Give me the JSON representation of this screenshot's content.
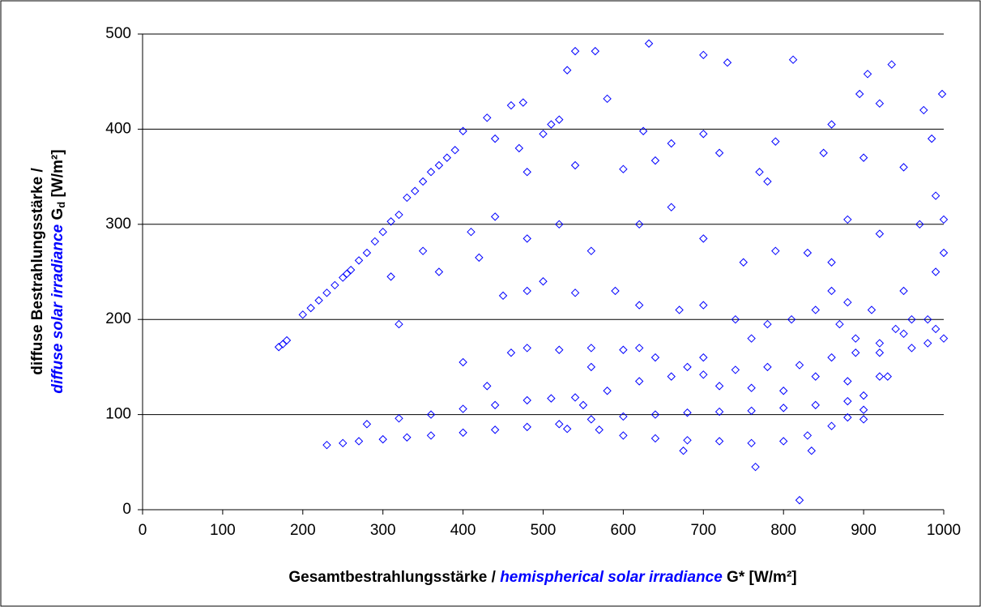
{
  "chart_data": {
    "type": "scatter",
    "xlabel_parts": [
      "Gesamtbestrahlungsstärke / ",
      "hemispherical solar irradiance",
      " G* [W/m²]"
    ],
    "ylabel_line1": "diffuse Bestrahlungsstärke /",
    "ylabel_parts": [
      "diffuse solar irradiance",
      " G",
      "d",
      " [W/m²]"
    ],
    "color": "#0000ff",
    "marker": "diamond",
    "grid": true,
    "xlim": [
      0,
      1000
    ],
    "xticks": [
      0,
      100,
      200,
      300,
      400,
      500,
      600,
      700,
      800,
      900,
      1000
    ],
    "ylim": [
      0,
      500
    ],
    "yticks": [
      0,
      100,
      200,
      300,
      400,
      500
    ],
    "x": [
      170,
      175,
      180,
      200,
      210,
      220,
      230,
      240,
      250,
      255,
      260,
      270,
      280,
      290,
      300,
      310,
      320,
      330,
      340,
      350,
      360,
      370,
      380,
      390,
      400,
      230,
      250,
      270,
      300,
      330,
      360,
      400,
      440,
      480,
      520,
      560,
      600,
      640,
      680,
      720,
      760,
      800,
      840,
      880,
      900,
      930,
      960,
      990,
      280,
      320,
      360,
      400,
      440,
      480,
      510,
      540,
      580,
      620,
      660,
      700,
      740,
      780,
      820,
      860,
      890,
      920,
      950,
      980,
      570,
      600,
      640,
      680,
      720,
      760,
      800,
      830,
      860,
      880,
      900,
      560,
      600,
      640,
      680,
      720,
      760,
      800,
      840,
      880,
      920,
      540,
      565,
      632,
      700,
      730,
      812,
      935,
      998,
      530,
      460,
      475,
      580,
      430,
      510,
      625,
      700,
      720,
      660,
      790,
      860,
      895,
      905,
      920,
      975,
      985,
      440,
      470,
      500,
      520,
      480,
      540,
      600,
      640,
      780,
      770,
      850,
      900,
      950,
      990,
      410,
      420,
      440,
      480,
      520,
      560,
      620,
      660,
      700,
      750,
      790,
      830,
      860,
      880,
      920,
      970,
      1000,
      310,
      320,
      350,
      370,
      400,
      430,
      450,
      480,
      500,
      540,
      590,
      620,
      670,
      700,
      740,
      780,
      810,
      840,
      880,
      910,
      950,
      990,
      1000,
      820,
      765,
      675,
      835,
      860,
      870,
      890,
      960,
      980,
      1000,
      940,
      920,
      760,
      700,
      620,
      560,
      520,
      480,
      460,
      550,
      530,
      900
    ],
    "values": [
      171,
      174,
      178,
      205,
      212,
      220,
      228,
      236,
      244,
      248,
      252,
      262,
      270,
      282,
      292,
      303,
      310,
      328,
      335,
      345,
      355,
      362,
      370,
      378,
      398,
      68,
      70,
      72,
      74,
      76,
      78,
      81,
      84,
      87,
      90,
      95,
      98,
      100,
      102,
      103,
      104,
      107,
      110,
      114,
      120,
      140,
      170,
      190,
      90,
      96,
      100,
      106,
      110,
      115,
      117,
      118,
      125,
      135,
      140,
      142,
      147,
      150,
      152,
      160,
      165,
      175,
      185,
      200,
      84,
      78,
      75,
      73,
      72,
      70,
      72,
      78,
      88,
      97,
      105,
      170,
      168,
      160,
      150,
      130,
      128,
      125,
      140,
      135,
      140,
      482,
      482,
      490,
      478,
      470,
      473,
      468,
      437,
      462,
      425,
      428,
      432,
      412,
      405,
      398,
      395,
      375,
      385,
      387,
      405,
      437,
      458,
      427,
      420,
      390,
      390,
      380,
      395,
      410,
      355,
      362,
      358,
      367,
      345,
      355,
      375,
      370,
      360,
      330,
      292,
      265,
      308,
      285,
      300,
      272,
      300,
      318,
      285,
      260,
      272,
      270,
      260,
      305,
      290,
      300,
      305,
      245,
      195,
      272,
      250,
      155,
      130,
      225,
      230,
      240,
      228,
      230,
      215,
      210,
      215,
      200,
      195,
      200,
      210,
      218,
      210,
      230,
      250,
      270,
      10,
      45,
      62,
      62,
      230,
      195,
      180,
      200,
      175,
      180,
      190,
      165,
      180,
      160,
      170,
      150,
      168,
      170,
      165,
      110,
      85,
      95
    ]
  }
}
